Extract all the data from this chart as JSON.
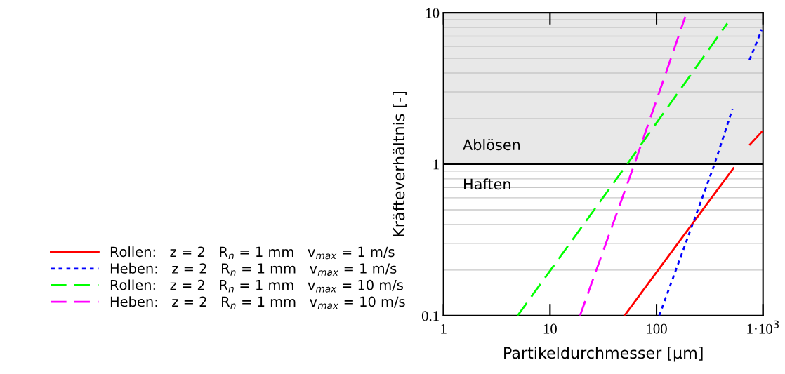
{
  "chart_data": {
    "type": "line",
    "xlabel": "Partikeldurchmesser [µm]",
    "ylabel": "Kräfteverhältnis [-]",
    "log": "xy",
    "xlim": [
      1,
      1000
    ],
    "ylim": [
      0.1,
      10
    ],
    "xticks": [
      1,
      10,
      100,
      {
        "value": 1000,
        "label": "1·10$^{3}$"
      }
    ],
    "yticks": [
      0.1,
      1,
      10
    ],
    "grid": "y",
    "legend": "left",
    "series": [
      {
        "name": "Rollen:   z = 2   R$_{n}$ = 1 mm   v$_{max}$ = 1 m/s",
        "color": "#ff0000",
        "line_style": "solid",
        "x": [
          50,
          527,
          640,
          755,
          975
        ],
        "values": [
          0.1,
          0.94,
          null,
          1.35,
          1.64
        ]
      },
      {
        "name": "Heben:   z = 2   R$_{n}$ = 1 mm   v$_{max}$ = 1 m/s",
        "color": "#0000ff",
        "line_style": "dotted",
        "x": [
          106,
          345,
          516,
          620,
          746,
          970
        ],
        "values": [
          0.1,
          0.97,
          2.31,
          null,
          4.88,
          7.69
        ]
      },
      {
        "name": "Rollen:   z = 2   R$_{n}$ = 1 mm   v$_{max}$ = 10 m/s",
        "color": "#00ff00",
        "line_style": "dashed",
        "x": [
          4.96,
          53,
          462
        ],
        "values": [
          0.1,
          1,
          8.5
        ]
      },
      {
        "name": "Heben:   z = 2   R$_{n}$ = 1 mm   v$_{max}$ = 10 m/s",
        "color": "#ff00ff",
        "line_style": "dashed",
        "x": [
          19.1,
          62,
          186
        ],
        "values": [
          0.1,
          1,
          9.4
        ]
      }
    ],
    "ref_lines": [
      {
        "axis": "y",
        "value": 1,
        "color": "#000000"
      }
    ],
    "bands": [
      {
        "axis": "y",
        "from": 1,
        "to": 10,
        "label": "Ablösen",
        "color": "#e8e8e8"
      }
    ],
    "annotations": [
      "Haften"
    ]
  }
}
